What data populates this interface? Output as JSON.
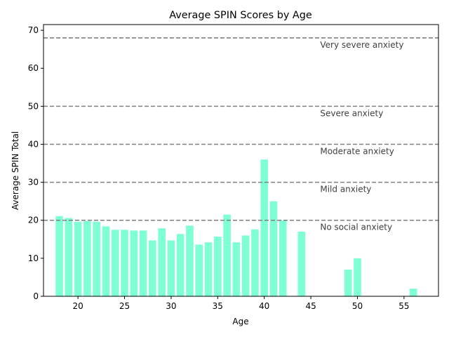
{
  "chart_data": {
    "type": "bar",
    "title": "Average SPIN Scores by Age",
    "xlabel": "Age",
    "ylabel": "Average SPIN Total",
    "xlim": [
      16.3,
      58.7
    ],
    "ylim": [
      0,
      71.5
    ],
    "xticks": [
      20,
      25,
      30,
      35,
      40,
      45,
      50,
      55
    ],
    "yticks": [
      0,
      10,
      20,
      30,
      40,
      50,
      60,
      70
    ],
    "bar_color": "#7fffd4",
    "threshold_color": "#808080",
    "threshold_label_color": "#404040",
    "bars": [
      {
        "x": 18,
        "y": 21.1
      },
      {
        "x": 19,
        "y": 20.6
      },
      {
        "x": 20,
        "y": 19.6
      },
      {
        "x": 21,
        "y": 19.8
      },
      {
        "x": 22,
        "y": 19.6
      },
      {
        "x": 23,
        "y": 18.4
      },
      {
        "x": 24,
        "y": 17.5
      },
      {
        "x": 25,
        "y": 17.5
      },
      {
        "x": 26,
        "y": 17.3
      },
      {
        "x": 27,
        "y": 17.3
      },
      {
        "x": 28,
        "y": 14.7
      },
      {
        "x": 29,
        "y": 17.9
      },
      {
        "x": 30,
        "y": 14.7
      },
      {
        "x": 31,
        "y": 16.4
      },
      {
        "x": 32,
        "y": 18.6
      },
      {
        "x": 33,
        "y": 13.6
      },
      {
        "x": 34,
        "y": 14.2
      },
      {
        "x": 35,
        "y": 15.7
      },
      {
        "x": 36,
        "y": 21.5
      },
      {
        "x": 37,
        "y": 14.2
      },
      {
        "x": 38,
        "y": 16.0
      },
      {
        "x": 39,
        "y": 17.6
      },
      {
        "x": 40,
        "y": 36.0
      },
      {
        "x": 41,
        "y": 25.0
      },
      {
        "x": 42,
        "y": 20.0
      },
      {
        "x": 44,
        "y": 17.0
      },
      {
        "x": 49,
        "y": 7.0
      },
      {
        "x": 50,
        "y": 10.0
      },
      {
        "x": 56,
        "y": 2.0
      }
    ],
    "thresholds": [
      {
        "value": 68,
        "label": "Very severe anxiety"
      },
      {
        "value": 50,
        "label": "Severe anxiety"
      },
      {
        "value": 40,
        "label": "Moderate anxiety"
      },
      {
        "value": 30,
        "label": "Mild anxiety"
      },
      {
        "value": 20,
        "label": "No social anxiety"
      }
    ]
  }
}
